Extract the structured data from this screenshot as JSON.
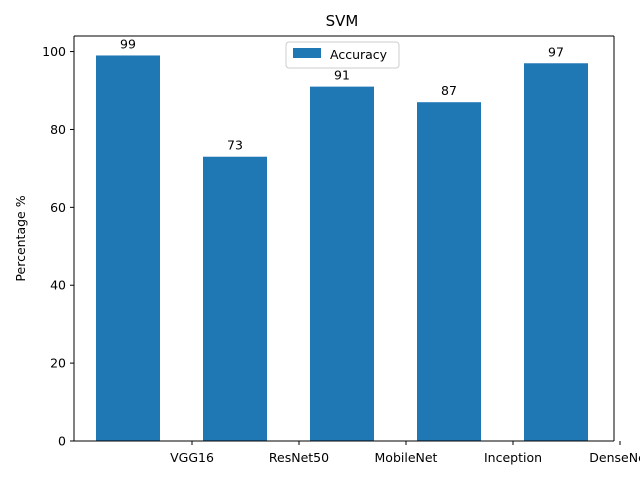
{
  "chart_data": {
    "type": "bar",
    "title": "SVM",
    "xlabel": "",
    "ylabel": "Percentage %",
    "categories": [
      "VGG16",
      "ResNet50",
      "MobileNet",
      "Inception",
      "DenseNet"
    ],
    "series": [
      {
        "name": "Accuracy",
        "values": [
          99,
          73,
          91,
          87,
          97
        ],
        "color": "#1f77b4"
      }
    ],
    "ylim": [
      0,
      104
    ],
    "yticks": [
      0,
      20,
      40,
      60,
      80,
      100
    ],
    "grid": false,
    "legend_position": "top-center"
  }
}
